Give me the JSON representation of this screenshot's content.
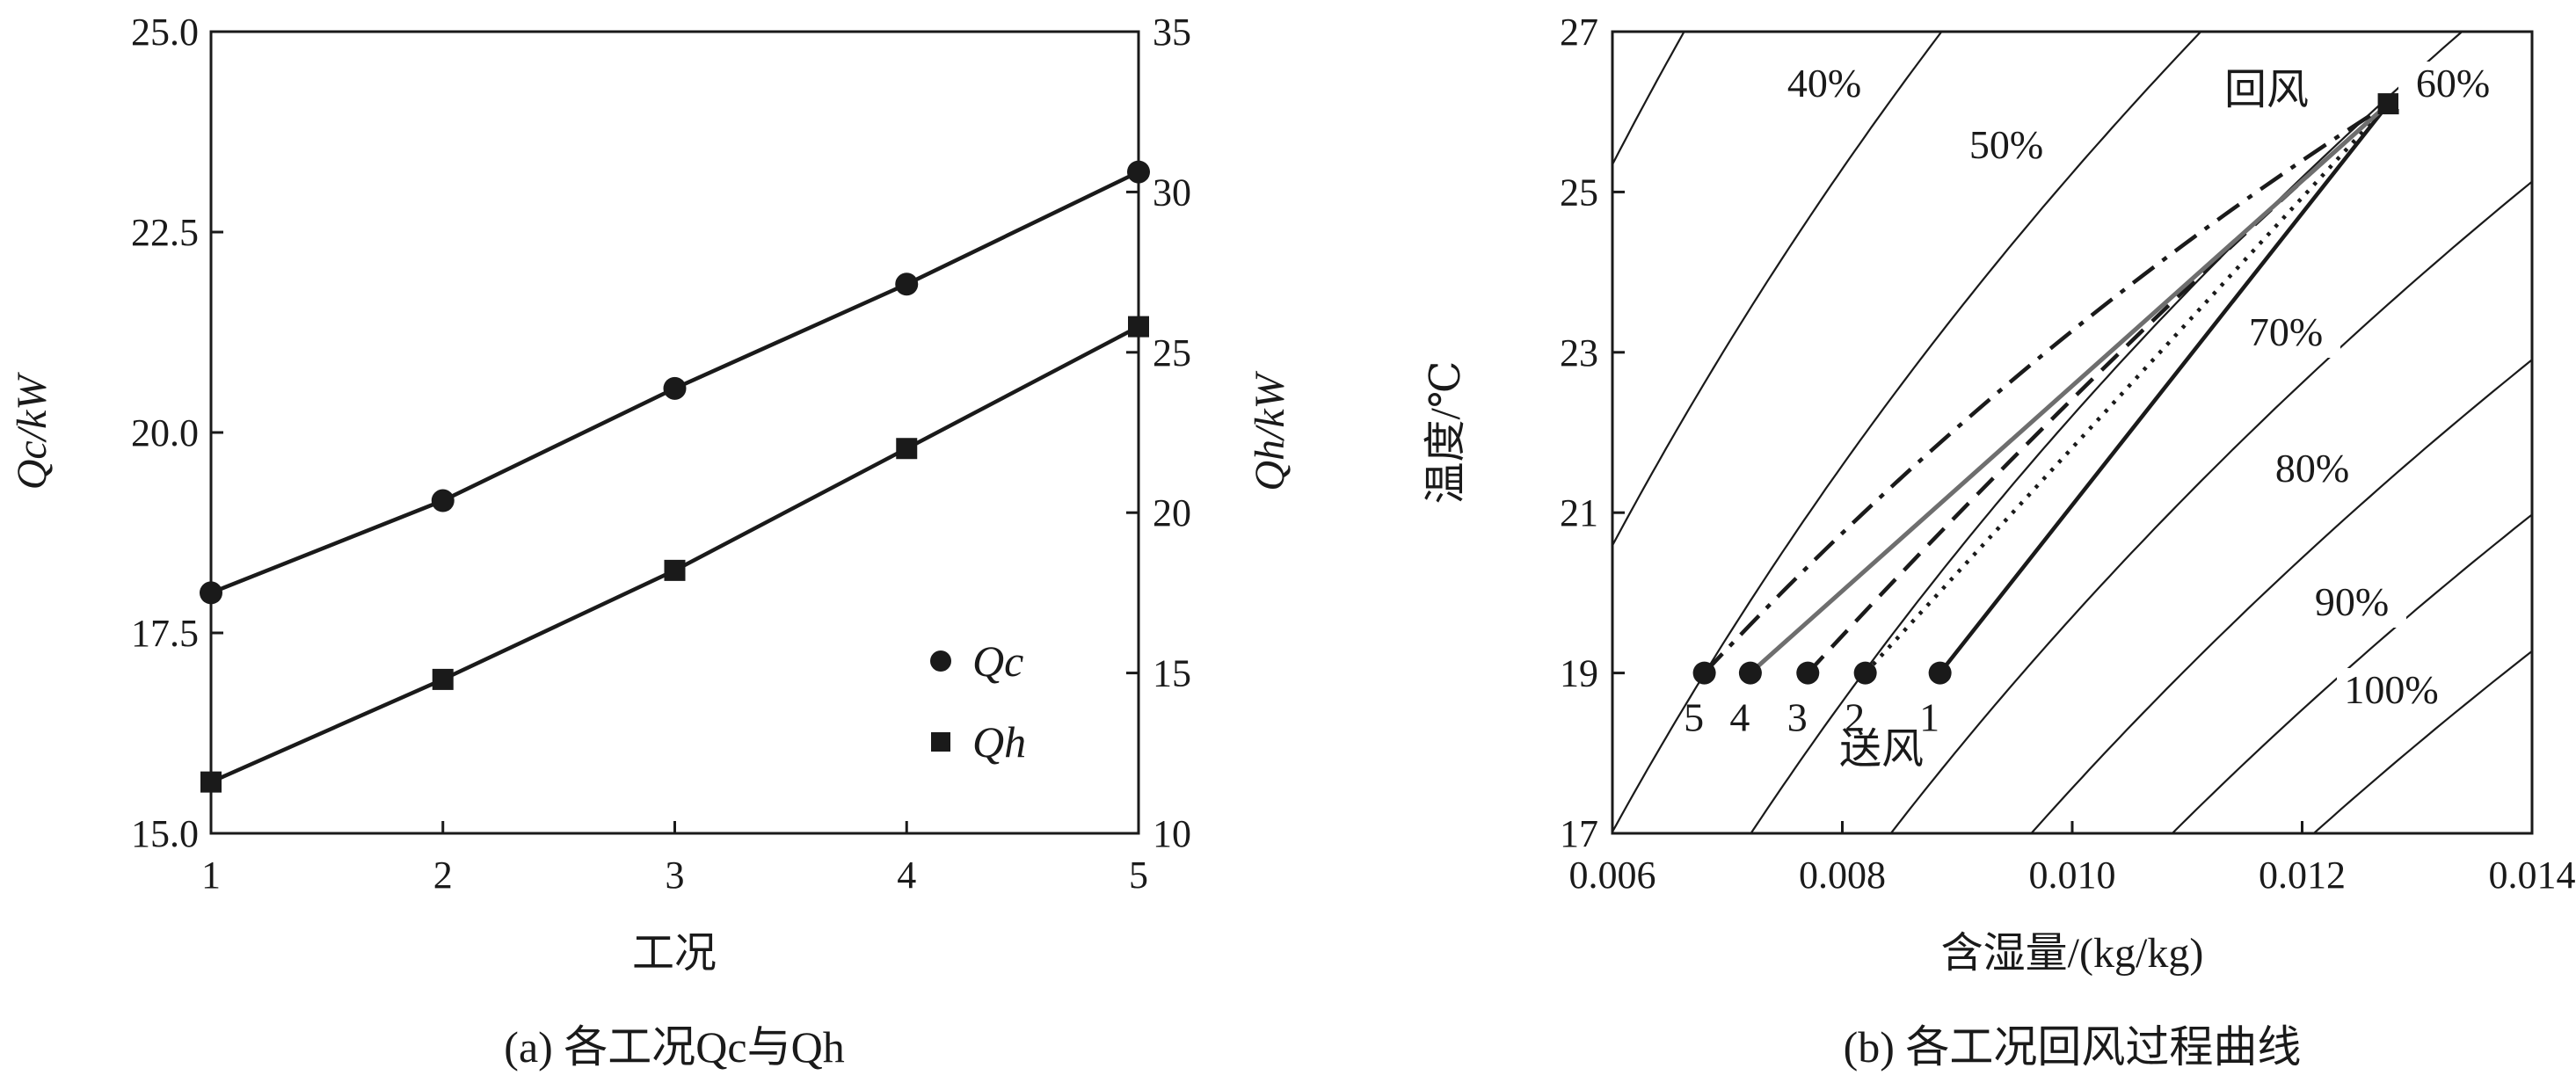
{
  "chart_data": [
    {
      "type": "line",
      "caption": "(a) 各工况Qc与Qh",
      "xlabel": "工况",
      "x": [
        1,
        2,
        3,
        4,
        5
      ],
      "xlim": [
        1,
        5
      ],
      "xticks": [
        "1",
        "2",
        "3",
        "4",
        "5"
      ],
      "ylabel_left": "Qc/kW",
      "ylim_left": [
        15.0,
        25.0
      ],
      "yticks_left": [
        "15.0",
        "17.5",
        "20.0",
        "22.5",
        "25.0"
      ],
      "ylabel_right": "Qh/kW",
      "ylim_right": [
        10,
        35
      ],
      "yticks_right": [
        "10",
        "15",
        "20",
        "25",
        "30",
        "35"
      ],
      "series": [
        {
          "name": "Qc",
          "marker": "circle",
          "axis": "left",
          "values": [
            18.0,
            19.15,
            20.55,
            21.85,
            23.25
          ]
        },
        {
          "name": "Qh",
          "marker": "square",
          "axis": "right",
          "values": [
            11.6,
            14.8,
            18.2,
            22.0,
            25.8
          ]
        }
      ],
      "legend": {
        "position": "bottom-right",
        "entries": [
          "Qc",
          "Qh"
        ]
      },
      "grid": false
    },
    {
      "type": "line",
      "caption": "(b) 各工况回风过程曲线",
      "xlabel": "含湿量/(kg/kg)",
      "ylabel": "温度/℃",
      "xlim": [
        0.006,
        0.014
      ],
      "ylim": [
        17,
        27
      ],
      "xticks": [
        "0.006",
        "0.008",
        "0.010",
        "0.012",
        "0.014"
      ],
      "yticks": [
        "17",
        "19",
        "21",
        "23",
        "25",
        "27"
      ],
      "rh_curves": [
        "40%",
        "50%",
        "60%",
        "70%",
        "80%",
        "90%",
        "100%"
      ],
      "return_air": {
        "label": "回风",
        "d": 0.01275,
        "t": 26.1
      },
      "supply_air_label": "送风",
      "supply_points": [
        {
          "label": "1",
          "d": 0.00885,
          "t": 19.0,
          "style": "solid"
        },
        {
          "label": "2",
          "d": 0.0082,
          "t": 19.0,
          "style": "dotted"
        },
        {
          "label": "3",
          "d": 0.0077,
          "t": 19.0,
          "style": "dashed"
        },
        {
          "label": "4",
          "d": 0.0072,
          "t": 19.0,
          "style": "solid-gray"
        },
        {
          "label": "5",
          "d": 0.0068,
          "t": 19.0,
          "style": "dashdot"
        }
      ],
      "grid": false
    }
  ]
}
